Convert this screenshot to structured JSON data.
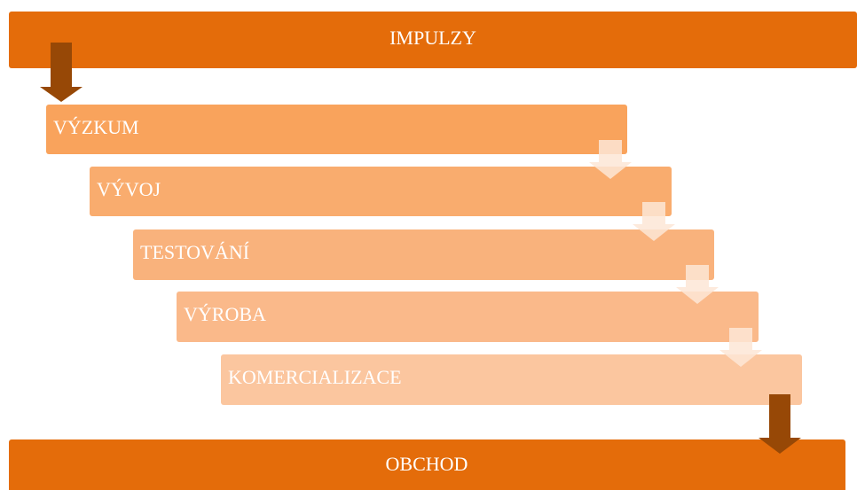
{
  "header": {
    "title": "IMPULZY"
  },
  "steps": [
    {
      "label": "VÝZKUM"
    },
    {
      "label": "VÝVOJ"
    },
    {
      "label": "TESTOVÁNÍ"
    },
    {
      "label": "VÝROBA"
    },
    {
      "label": "KOMERCIALIZACE"
    }
  ],
  "footer": {
    "title": "OBCHOD"
  }
}
